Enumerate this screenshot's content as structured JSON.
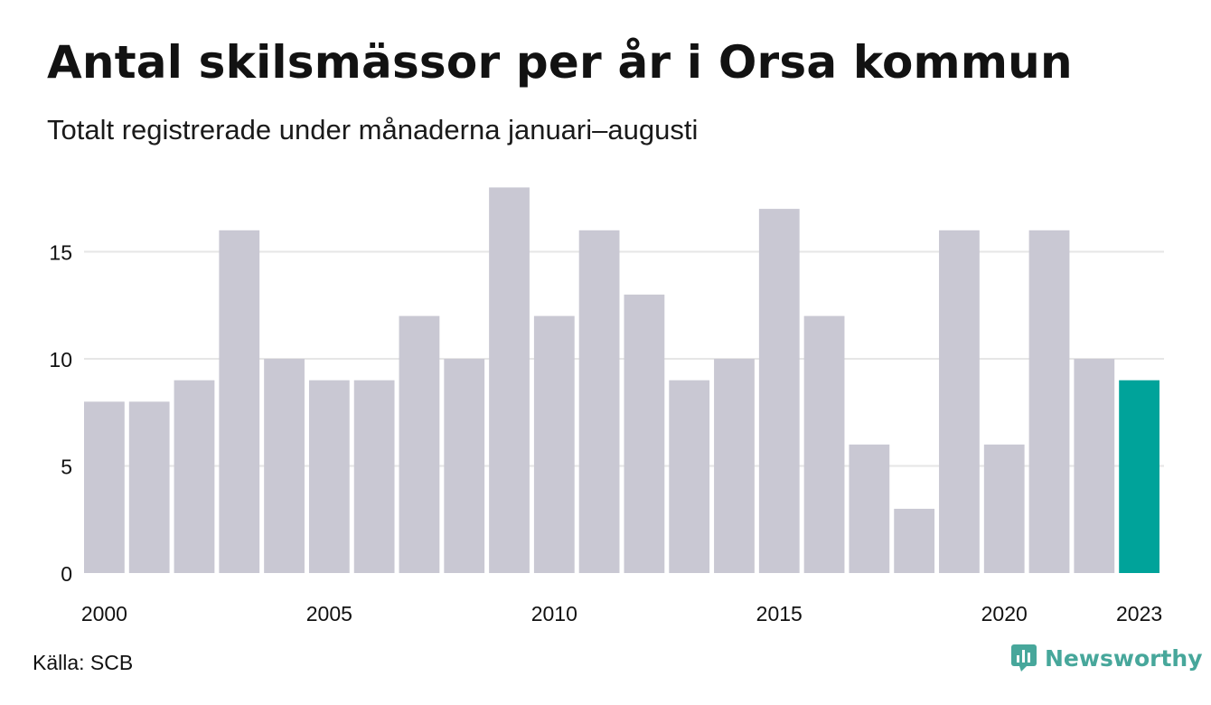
{
  "title": "Antal skilsmässor per år i Orsa kommun",
  "subtitle": "Totalt registrerade under månaderna januari–augusti",
  "source": "Källa: SCB",
  "brand": {
    "name": "Newsworthy",
    "icon": "newsworthy-logo-icon",
    "color": "#47a79b"
  },
  "colors": {
    "bar": "#c9c8d3",
    "highlight": "#00a39a",
    "grid": "#e6e6e6"
  },
  "chart_data": {
    "type": "bar",
    "categories": [
      "2000",
      "2001",
      "2002",
      "2003",
      "2004",
      "2005",
      "2006",
      "2007",
      "2008",
      "2009",
      "2010",
      "2011",
      "2012",
      "2013",
      "2014",
      "2015",
      "2016",
      "2017",
      "2018",
      "2019",
      "2020",
      "2021",
      "2022",
      "2023"
    ],
    "values": [
      8,
      8,
      9,
      16,
      10,
      9,
      9,
      12,
      10,
      18,
      12,
      16,
      13,
      9,
      10,
      17,
      12,
      6,
      3,
      16,
      6,
      16,
      10,
      9
    ],
    "highlight": "2023",
    "x_tick_labels": [
      "2000",
      "2005",
      "2010",
      "2015",
      "2020",
      "2023"
    ],
    "y_ticks": [
      0,
      5,
      10,
      15
    ],
    "ylim": [
      0,
      18
    ],
    "grid": true,
    "legend": false
  }
}
